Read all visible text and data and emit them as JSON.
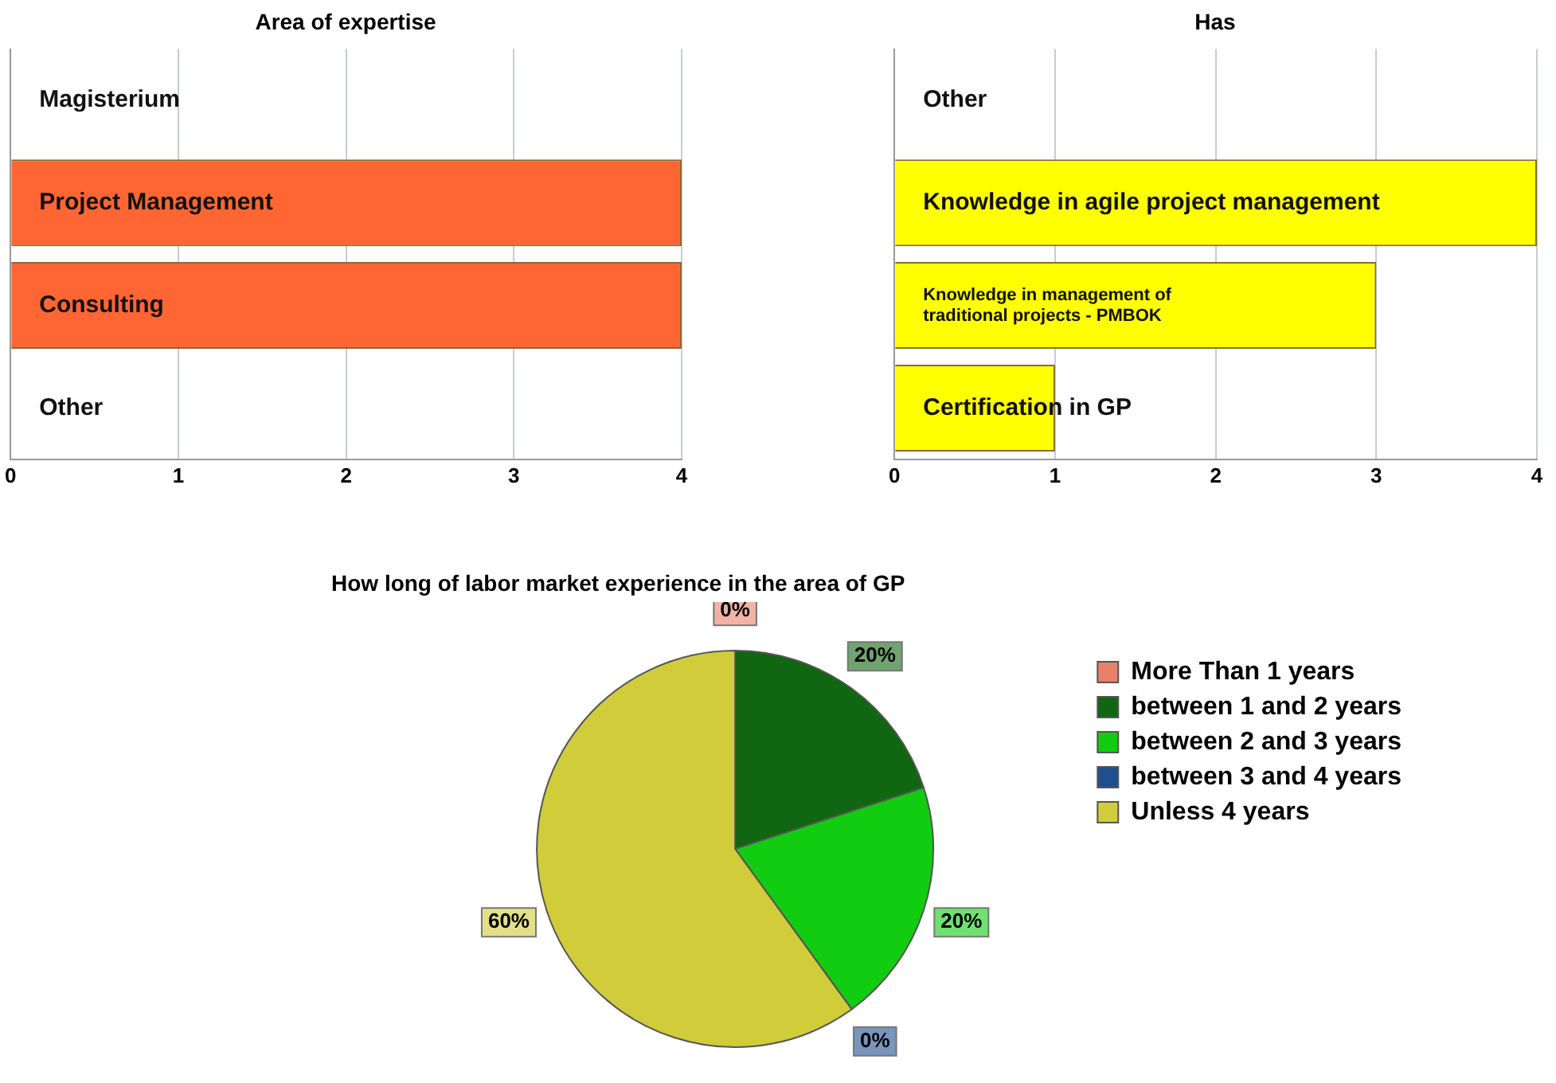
{
  "chart_data": [
    {
      "type": "bar",
      "orientation": "horizontal",
      "title": "Area of expertise",
      "categories": [
        "Magisterium",
        "Project Management",
        "Consulting",
        "Other"
      ],
      "values": [
        0,
        4,
        4,
        0
      ],
      "color": "#ff6633",
      "xlim": [
        0,
        4
      ],
      "xticks": [
        0,
        1,
        2,
        3,
        4
      ],
      "grid": "x",
      "legend": false
    },
    {
      "type": "bar",
      "orientation": "horizontal",
      "title": "Has",
      "categories": [
        "Other",
        "Knowledge in agile project management",
        "Knowledge in management of traditional projects - PMBOK",
        "Certification in GP"
      ],
      "values": [
        0,
        4,
        3,
        1
      ],
      "color": "#ffff00",
      "xlim": [
        0,
        4
      ],
      "xticks": [
        0,
        1,
        2,
        3,
        4
      ],
      "grid": "x",
      "legend": false
    },
    {
      "type": "pie",
      "title": "How long of labor market experience in the area of GP",
      "categories": [
        "More Than 1 years",
        "between 1 and 2 years",
        "between 2 and 3 years",
        "between 3 and 4 years",
        "Unless 4 years"
      ],
      "values": [
        0,
        20,
        20,
        0,
        60
      ],
      "colors": [
        "#e8806a",
        "#116611",
        "#11cc11",
        "#1f4f8f",
        "#d0cc3a"
      ],
      "value_labels": [
        "0%",
        "20%",
        "20%",
        "0%",
        "60%"
      ],
      "legend": "right"
    }
  ]
}
